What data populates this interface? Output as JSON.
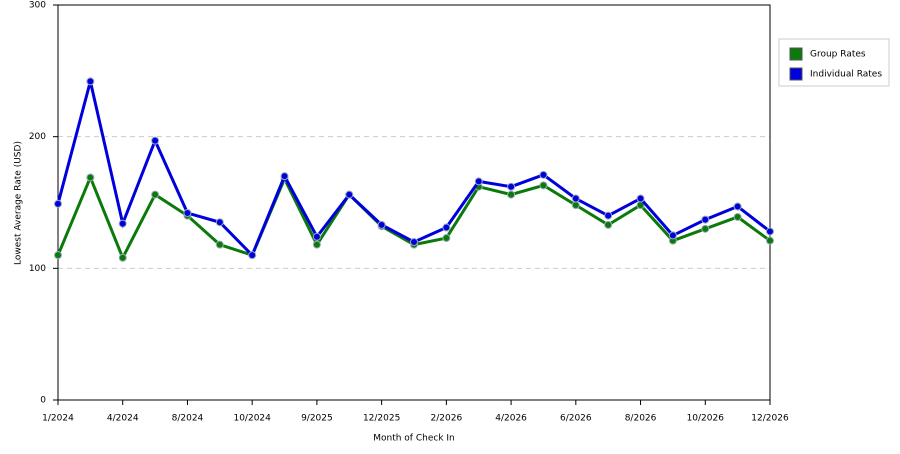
{
  "chart_data": {
    "type": "line",
    "x_label": "Month of Check In",
    "y_label": "Lowest Average Rate (USD)",
    "categories": [
      "1/2024",
      null,
      "4/2024",
      null,
      "8/2024",
      null,
      "10/2024",
      null,
      "9/2025",
      null,
      "12/2025",
      null,
      "2/2026",
      null,
      "4/2026",
      null,
      "6/2026",
      null,
      "8/2026",
      null,
      "10/2026",
      null,
      "12/2026"
    ],
    "series": [
      {
        "name": "Group Rates",
        "color": "#0b7a0b",
        "values": [
          110,
          169,
          108,
          156,
          140,
          118,
          110,
          168,
          118,
          156,
          132,
          118,
          123,
          162,
          156,
          163,
          148,
          133,
          148,
          121,
          130,
          139,
          121
        ]
      },
      {
        "name": "Individual Rates",
        "color": "#0000dd",
        "values": [
          149,
          242,
          134,
          197,
          142,
          135,
          110,
          170,
          124,
          156,
          133,
          120,
          131,
          166,
          162,
          171,
          153,
          140,
          153,
          125,
          137,
          147,
          128
        ]
      }
    ],
    "ylim": [
      0,
      300
    ],
    "yticks": [
      0,
      100,
      200,
      300
    ],
    "grid": true,
    "legend": "right"
  }
}
